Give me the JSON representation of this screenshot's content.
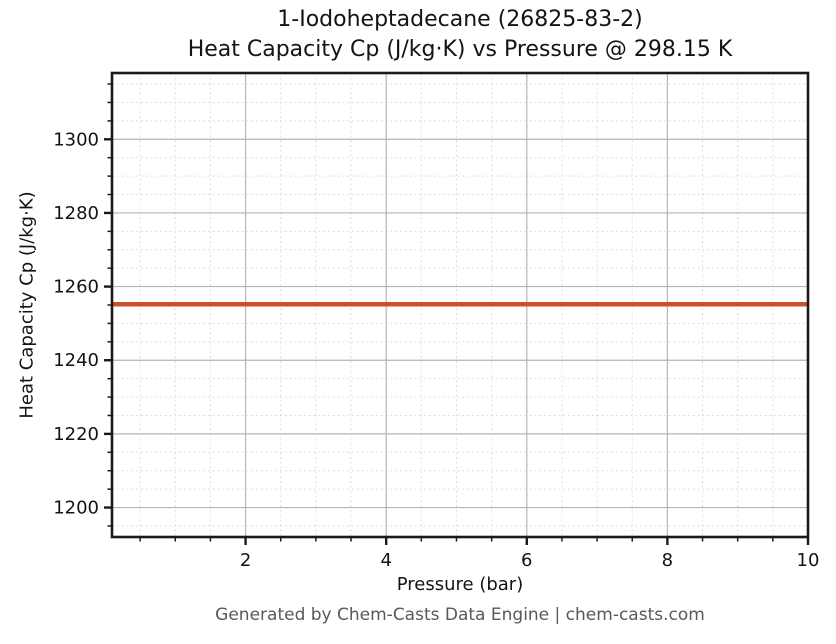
{
  "page": {
    "background": "#ffffff"
  },
  "chart_data": {
    "type": "line",
    "title_line1": "1-Iodoheptadecane (26825-83-2)",
    "title_line2": "Heat Capacity Cp (J/kg·K) vs Pressure @ 298.15 K",
    "compound": "1-Iodoheptadecane",
    "cas_number": "26825-83-2",
    "temperature": "298.15 K",
    "xlabel": "Pressure (bar)",
    "ylabel": "Heat Capacity Cp (J/kg·K)",
    "footer": "Generated by Chem-Casts Data Engine | chem-casts.com",
    "xlim": [
      0.1,
      10
    ],
    "ylim": [
      1192,
      1318
    ],
    "x_major_ticks": [
      2,
      4,
      6,
      8,
      10
    ],
    "x_minor_step": 0.5,
    "y_major_ticks": [
      1200,
      1220,
      1240,
      1260,
      1280,
      1300
    ],
    "y_minor_step": 5,
    "grid": {
      "major": true,
      "minor": true
    },
    "legend": "none",
    "series": [
      {
        "name": "Heat Capacity Cp",
        "x": [
          0.1,
          10
        ],
        "y": [
          1255.2,
          1255.2
        ],
        "color": "#cd5028",
        "linewidth": 4.5
      }
    ],
    "style": {
      "spine_color": "#1a1a1a",
      "major_grid_color": "#b5b5b5",
      "minor_grid_color": "#dedede",
      "text_color": "#141414",
      "footer_color": "#595959",
      "background": "#ffffff",
      "tick_font_size": 18
    }
  }
}
